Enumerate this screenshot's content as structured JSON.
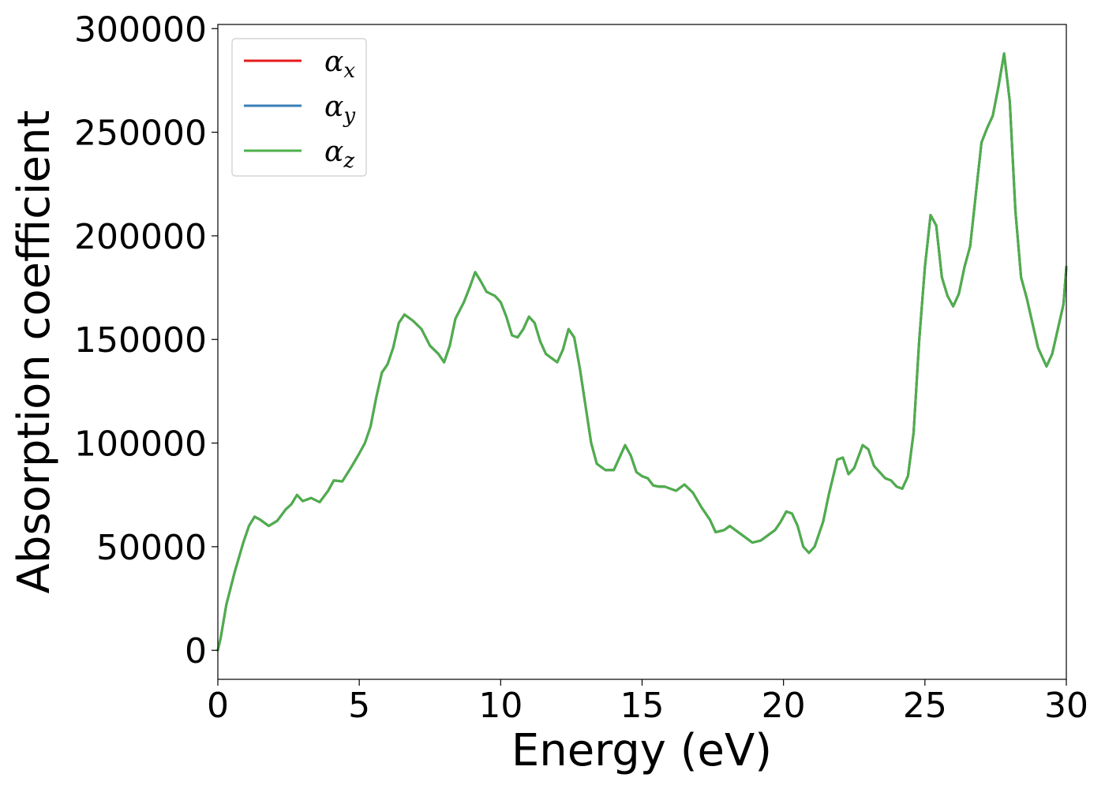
{
  "chart_data": {
    "type": "line",
    "title": "",
    "xlabel": "Energy (eV)",
    "ylabel": "Absorption coefficient",
    "xlim": [
      0,
      30
    ],
    "ylim": [
      -14000,
      302000
    ],
    "xticks": [
      0,
      5,
      10,
      15,
      20,
      25,
      30
    ],
    "xtick_labels": [
      "0",
      "5",
      "10",
      "15",
      "20",
      "25",
      "30"
    ],
    "yticks": [
      0,
      50000,
      100000,
      150000,
      200000,
      250000,
      300000
    ],
    "ytick_labels": [
      "0",
      "50000",
      "100000",
      "150000",
      "200000",
      "250000",
      "300000"
    ],
    "grid": false,
    "legend_position": "top-left",
    "x": [
      0,
      0.1,
      0.3,
      0.6,
      0.9,
      1.1,
      1.3,
      1.5,
      1.8,
      2.1,
      2.4,
      2.6,
      2.8,
      3.0,
      3.3,
      3.6,
      3.9,
      4.1,
      4.4,
      4.7,
      5.0,
      5.2,
      5.4,
      5.6,
      5.8,
      6.0,
      6.2,
      6.4,
      6.6,
      6.9,
      7.2,
      7.5,
      7.8,
      8.0,
      8.2,
      8.4,
      8.7,
      8.9,
      9.1,
      9.3,
      9.5,
      9.8,
      10.0,
      10.2,
      10.4,
      10.6,
      10.8,
      11.0,
      11.2,
      11.4,
      11.6,
      11.8,
      12.0,
      12.2,
      12.4,
      12.6,
      12.8,
      13.0,
      13.2,
      13.4,
      13.7,
      14.0,
      14.2,
      14.4,
      14.6,
      14.8,
      15.0,
      15.2,
      15.4,
      15.6,
      15.8,
      16.0,
      16.2,
      16.5,
      16.8,
      17.1,
      17.4,
      17.6,
      17.9,
      18.1,
      18.4,
      18.7,
      18.9,
      19.2,
      19.5,
      19.7,
      19.9,
      20.1,
      20.3,
      20.5,
      20.7,
      20.9,
      21.1,
      21.4,
      21.6,
      21.9,
      22.1,
      22.3,
      22.5,
      22.8,
      23.0,
      23.2,
      23.4,
      23.6,
      23.8,
      24.0,
      24.2,
      24.4,
      24.6,
      24.8,
      25.0,
      25.2,
      25.4,
      25.6,
      25.8,
      26.0,
      26.2,
      26.4,
      26.6,
      26.8,
      27.0,
      27.2,
      27.4,
      27.6,
      27.8,
      28.0,
      28.2,
      28.4,
      28.6,
      28.8,
      29.0,
      29.3,
      29.5,
      29.7,
      29.9,
      30.0
    ],
    "series": [
      {
        "name": "α_x",
        "color": "#e41a1c",
        "values": [
          0,
          6000,
          22000,
          38000,
          52000,
          60000,
          64500,
          63000,
          60000,
          62500,
          68000,
          70500,
          75000,
          72000,
          73500,
          71500,
          77000,
          82000,
          81500,
          88000,
          95000,
          100000,
          108000,
          122000,
          134000,
          138000,
          146000,
          158000,
          162000,
          159000,
          155000,
          147000,
          143000,
          139000,
          147000,
          160000,
          168000,
          175000,
          182500,
          178000,
          173000,
          171000,
          168000,
          161000,
          152000,
          151000,
          155000,
          161000,
          158000,
          149000,
          143000,
          141000,
          139000,
          145000,
          155000,
          151000,
          136000,
          118000,
          100000,
          90000,
          87000,
          87000,
          93000,
          99000,
          94000,
          86000,
          84000,
          83000,
          79500,
          79000,
          79000,
          78000,
          77000,
          80000,
          76000,
          69000,
          63000,
          57000,
          58000,
          60000,
          57000,
          54000,
          52000,
          53000,
          56000,
          58000,
          62000,
          67000,
          66000,
          60000,
          50000,
          47000,
          50000,
          62000,
          75000,
          92000,
          93000,
          85000,
          88000,
          99000,
          97000,
          89000,
          86000,
          83000,
          82000,
          79000,
          78000,
          84000,
          105000,
          150000,
          185000,
          210000,
          205000,
          180000,
          171000,
          166000,
          172000,
          185000,
          195000,
          220000,
          245000,
          252000,
          258000,
          272000,
          288000,
          265000,
          212000,
          180000,
          170000,
          158000,
          146000,
          137000,
          143000,
          155000,
          167000,
          185000
        ]
      },
      {
        "name": "α_y",
        "color": "#377eb8",
        "values": [
          0,
          6000,
          22000,
          38000,
          52000,
          60000,
          64500,
          63000,
          60000,
          62500,
          68000,
          70500,
          75000,
          72000,
          73500,
          71500,
          77000,
          82000,
          81500,
          88000,
          95000,
          100000,
          108000,
          122000,
          134000,
          138000,
          146000,
          158000,
          162000,
          159000,
          155000,
          147000,
          143000,
          139000,
          147000,
          160000,
          168000,
          175000,
          182500,
          178000,
          173000,
          171000,
          168000,
          161000,
          152000,
          151000,
          155000,
          161000,
          158000,
          149000,
          143000,
          141000,
          139000,
          145000,
          155000,
          151000,
          136000,
          118000,
          100000,
          90000,
          87000,
          87000,
          93000,
          99000,
          94000,
          86000,
          84000,
          83000,
          79500,
          79000,
          79000,
          78000,
          77000,
          80000,
          76000,
          69000,
          63000,
          57000,
          58000,
          60000,
          57000,
          54000,
          52000,
          53000,
          56000,
          58000,
          62000,
          67000,
          66000,
          60000,
          50000,
          47000,
          50000,
          62000,
          75000,
          92000,
          93000,
          85000,
          88000,
          99000,
          97000,
          89000,
          86000,
          83000,
          82000,
          79000,
          78000,
          84000,
          105000,
          150000,
          185000,
          210000,
          205000,
          180000,
          171000,
          166000,
          172000,
          185000,
          195000,
          220000,
          245000,
          252000,
          258000,
          272000,
          288000,
          265000,
          212000,
          180000,
          170000,
          158000,
          146000,
          137000,
          143000,
          155000,
          167000,
          185000
        ]
      },
      {
        "name": "α_z",
        "color": "#4daf4a",
        "values": [
          0,
          6000,
          22000,
          38000,
          52000,
          60000,
          64500,
          63000,
          60000,
          62500,
          68000,
          70500,
          75000,
          72000,
          73500,
          71500,
          77000,
          82000,
          81500,
          88000,
          95000,
          100000,
          108000,
          122000,
          134000,
          138000,
          146000,
          158000,
          162000,
          159000,
          155000,
          147000,
          143000,
          139000,
          147000,
          160000,
          168000,
          175000,
          182500,
          178000,
          173000,
          171000,
          168000,
          161000,
          152000,
          151000,
          155000,
          161000,
          158000,
          149000,
          143000,
          141000,
          139000,
          145000,
          155000,
          151000,
          136000,
          118000,
          100000,
          90000,
          87000,
          87000,
          93000,
          99000,
          94000,
          86000,
          84000,
          83000,
          79500,
          79000,
          79000,
          78000,
          77000,
          80000,
          76000,
          69000,
          63000,
          57000,
          58000,
          60000,
          57000,
          54000,
          52000,
          53000,
          56000,
          58000,
          62000,
          67000,
          66000,
          60000,
          50000,
          47000,
          50000,
          62000,
          75000,
          92000,
          93000,
          85000,
          88000,
          99000,
          97000,
          89000,
          86000,
          83000,
          82000,
          79000,
          78000,
          84000,
          105000,
          150000,
          185000,
          210000,
          205000,
          180000,
          171000,
          166000,
          172000,
          185000,
          195000,
          220000,
          245000,
          252000,
          258000,
          272000,
          288000,
          265000,
          212000,
          180000,
          170000,
          158000,
          146000,
          137000,
          143000,
          155000,
          167000,
          185000
        ]
      }
    ]
  }
}
